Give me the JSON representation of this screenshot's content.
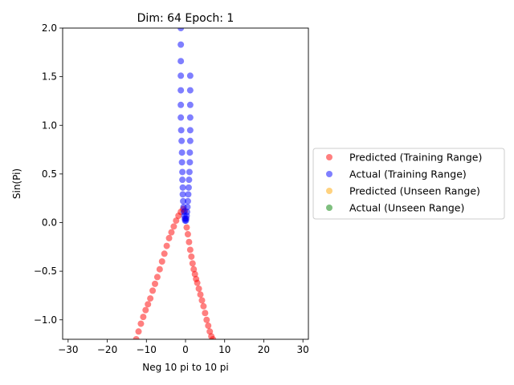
{
  "chart_data": {
    "type": "scatter",
    "title": "Dim: 64 Epoch: 1",
    "xlabel": "Neg 10 pi to 10 pi",
    "ylabel": "Sin(Pi)",
    "xlim": [
      -31.4,
      31.4
    ],
    "ylim": [
      -1.2,
      2.0
    ],
    "x_ticks": [
      -30,
      -20,
      -10,
      0,
      10,
      20,
      30
    ],
    "x_tick_labels": [
      "−30",
      "−20",
      "−10",
      "0",
      "10",
      "20",
      "30"
    ],
    "y_ticks": [
      -1.0,
      -0.5,
      0.0,
      0.5,
      1.0,
      1.5,
      2.0
    ],
    "y_tick_labels": [
      "−1.0",
      "−0.5",
      "0.0",
      "0.5",
      "1.0",
      "1.5",
      "2.0"
    ],
    "grid": false,
    "legend_position": "center-right outside",
    "series": [
      {
        "name": "Predicted (Training Range)",
        "color": "#ff0000",
        "alpha": 0.5,
        "x": [
          -12.6,
          -12.0,
          -11.4,
          -10.8,
          -10.2,
          -9.6,
          -9.0,
          -8.4,
          -7.8,
          -7.2,
          -6.6,
          -6.0,
          -5.4,
          -4.8,
          -4.2,
          -3.6,
          -3.0,
          -2.4,
          -1.8,
          -1.2,
          -0.6,
          -0.2,
          0.0,
          0.3,
          0.6,
          0.9,
          1.2,
          1.5,
          1.8,
          2.1,
          2.4,
          2.7,
          3.0,
          3.4,
          3.8,
          4.2,
          4.6,
          5.0,
          5.4,
          5.8,
          6.2,
          6.6,
          7.0
        ],
        "y": [
          -1.2,
          -1.12,
          -1.04,
          -0.97,
          -0.9,
          -0.84,
          -0.78,
          -0.7,
          -0.63,
          -0.56,
          -0.48,
          -0.4,
          -0.32,
          -0.24,
          -0.16,
          -0.1,
          -0.04,
          0.02,
          0.07,
          0.11,
          0.14,
          0.12,
          0.04,
          -0.05,
          -0.12,
          -0.2,
          -0.28,
          -0.35,
          -0.42,
          -0.48,
          -0.53,
          -0.58,
          -0.62,
          -0.68,
          -0.74,
          -0.8,
          -0.86,
          -0.93,
          -1.0,
          -1.06,
          -1.12,
          -1.17,
          -1.2
        ]
      },
      {
        "name": "Actual (Training Range)",
        "color": "#0000ff",
        "alpha": 0.5,
        "x": [
          -1.2,
          -1.2,
          -1.2,
          -1.2,
          -1.2,
          -1.2,
          -1.2,
          -1.1,
          -1.0,
          -0.9,
          -0.9,
          -0.8,
          -0.8,
          -0.7,
          -0.7,
          -0.6,
          -0.5,
          -0.4,
          -0.3,
          -0.2,
          -0.1,
          0.1,
          0.2,
          0.3,
          0.4,
          0.5,
          0.6,
          0.7,
          0.8,
          0.9,
          1.0,
          1.1,
          1.1,
          1.2,
          1.2,
          1.2,
          1.2,
          1.2,
          1.2
        ],
        "y": [
          2.0,
          1.83,
          1.66,
          1.51,
          1.36,
          1.21,
          1.08,
          0.95,
          0.84,
          0.72,
          0.62,
          0.52,
          0.44,
          0.36,
          0.29,
          0.22,
          0.16,
          0.11,
          0.07,
          0.04,
          0.02,
          0.02,
          0.04,
          0.07,
          0.11,
          0.16,
          0.22,
          0.29,
          0.36,
          0.44,
          0.52,
          0.62,
          0.72,
          0.84,
          0.95,
          1.08,
          1.21,
          1.36,
          1.51
        ]
      },
      {
        "name": "Predicted (Unseen Range)",
        "color": "#ffa500",
        "alpha": 0.5,
        "x": [],
        "y": []
      },
      {
        "name": "Actual (Unseen Range)",
        "color": "#008000",
        "alpha": 0.5,
        "x": [],
        "y": []
      }
    ]
  }
}
